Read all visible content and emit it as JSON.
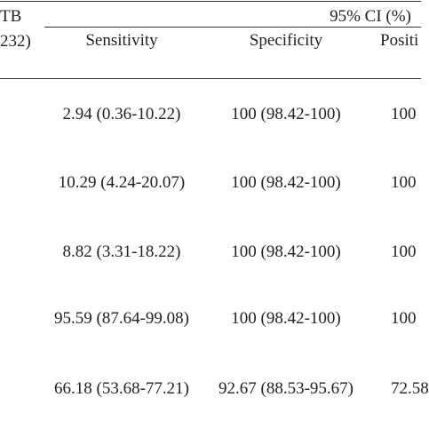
{
  "table": {
    "header": {
      "group_left": "TB",
      "group_left_sub": "232)",
      "group_ci": "95% CI (%)",
      "columns": [
        "Sensitivity",
        "Specificity",
        "Positi"
      ]
    },
    "rows": [
      [
        "2.94 (0.36-10.22)",
        "100 (98.42-100)",
        "100"
      ],
      [
        "10.29 (4.24-20.07)",
        "100 (98.42-100)",
        "100"
      ],
      [
        "8.82 (3.31-18.22)",
        "100 (98.42-100)",
        "100"
      ],
      [
        "95.59 (87.64-99.08)",
        "100 (98.42-100)",
        "100"
      ],
      [
        "66.18 (53.68-77.21)",
        "92.67 (88.53-95.67)",
        "72.58"
      ]
    ]
  }
}
